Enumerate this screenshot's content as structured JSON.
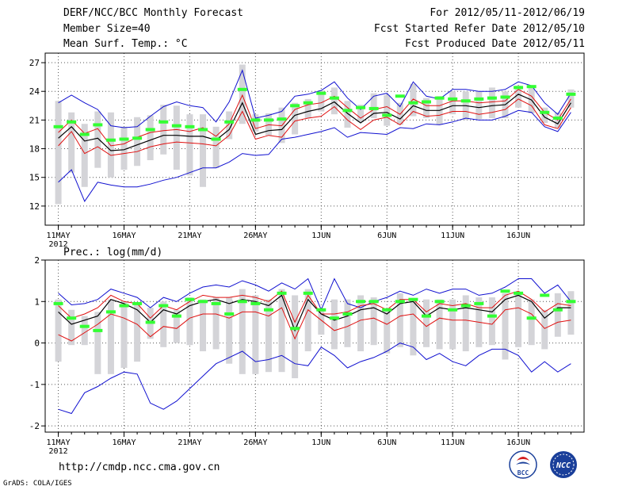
{
  "header": {
    "title": "DERF/NCC/BCC Monthly Forecast",
    "member_size": "Member Size=40",
    "variable": "Mean Surf. Temp.: °C",
    "period": "For 2012/05/11-2012/06/19",
    "fcst_started": "Fcst Started Refer Date 2012/05/10",
    "fcst_produced": "Fcst Produced Date 2012/05/11"
  },
  "footer": {
    "url": "http://cmdp.ncc.cma.gov.cn",
    "credit": "GrADS: COLA/IGES",
    "logo_left": "BCC",
    "logo_right": "NCC"
  },
  "colors": {
    "max": "#1010d0",
    "min": "#1010d0",
    "ensemble": "#000000",
    "spread": "#e01010",
    "box": "#d4d4d8",
    "marker": "#33ff33",
    "grid": "#555555"
  },
  "chart_data": [
    {
      "type": "line",
      "title": "Mean Surf. Temp.: °C",
      "xlabel": "",
      "ylabel": "",
      "ylim": [
        10,
        28
      ],
      "yticks": [
        12,
        15,
        18,
        21,
        24,
        27
      ],
      "x_tick_labels": [
        "11MAY",
        "16MAY",
        "21MAY",
        "26MAY",
        "1JUN",
        "6JUN",
        "11JUN",
        "16JUN"
      ],
      "x_tick_days": [
        0,
        5,
        10,
        15,
        20,
        25,
        30,
        35
      ],
      "year_label": "2012",
      "days": 40,
      "series": [
        {
          "name": "max",
          "values": [
            22.8,
            23.6,
            22.8,
            22.1,
            20.4,
            20.2,
            20.3,
            21.4,
            22.4,
            22.9,
            22.5,
            22.3,
            20.8,
            22.9,
            26.2,
            21.2,
            21.5,
            21.9,
            23.5,
            23.7,
            24.1,
            25.0,
            23.3,
            22.1,
            23.5,
            23.8,
            22.4,
            25.0,
            23.5,
            23.2,
            24.2,
            24.2,
            24.0,
            24.0,
            24.2,
            25.0,
            24.6,
            22.8,
            21.6,
            23.8
          ]
        },
        {
          "name": "upper",
          "values": [
            19.7,
            21.0,
            19.6,
            20.1,
            18.3,
            18.5,
            19.2,
            19.7,
            19.9,
            20.0,
            19.8,
            20.2,
            19.3,
            20.6,
            23.6,
            20.1,
            20.5,
            20.4,
            22.1,
            22.6,
            22.8,
            23.5,
            22.3,
            21.2,
            22.1,
            22.4,
            21.6,
            23.2,
            22.5,
            22.5,
            23.0,
            23.0,
            22.8,
            22.9,
            23.0,
            24.2,
            23.5,
            21.8,
            21.0,
            23.2
          ]
        },
        {
          "name": "ensemble",
          "values": [
            19.1,
            20.3,
            18.8,
            19.1,
            17.8,
            17.9,
            18.4,
            18.9,
            19.4,
            19.4,
            19.3,
            19.3,
            18.9,
            20.0,
            22.8,
            19.5,
            19.9,
            20.0,
            21.5,
            21.9,
            22.2,
            22.9,
            21.7,
            20.7,
            21.7,
            21.8,
            21.1,
            22.5,
            22.0,
            22.0,
            22.5,
            22.5,
            22.3,
            22.5,
            22.6,
            23.7,
            23.1,
            21.3,
            20.6,
            22.8
          ]
        },
        {
          "name": "lower",
          "values": [
            18.3,
            19.8,
            17.5,
            18.2,
            17.3,
            17.5,
            17.7,
            18.2,
            18.5,
            18.7,
            18.6,
            18.5,
            18.3,
            19.4,
            21.9,
            19.0,
            19.4,
            19.2,
            20.9,
            21.2,
            21.4,
            22.4,
            21.0,
            20.0,
            21.0,
            21.3,
            20.5,
            21.9,
            21.4,
            21.5,
            21.9,
            21.9,
            21.6,
            21.8,
            22.1,
            23.2,
            22.5,
            20.5,
            20.1,
            22.3
          ]
        },
        {
          "name": "min",
          "values": [
            14.5,
            15.8,
            12.5,
            14.5,
            14.2,
            14.0,
            14.0,
            14.3,
            14.7,
            15.0,
            15.5,
            16.0,
            16.0,
            16.6,
            17.5,
            17.3,
            17.4,
            19.0,
            19.2,
            19.5,
            19.8,
            20.2,
            19.2,
            19.7,
            19.6,
            19.5,
            20.2,
            20.1,
            20.6,
            20.5,
            20.8,
            21.2,
            21.0,
            21.0,
            21.4,
            22.0,
            21.8,
            20.3,
            19.8,
            21.8
          ]
        },
        {
          "name": "marker",
          "values": [
            20.3,
            20.8,
            19.5,
            20.5,
            18.9,
            19.0,
            19.1,
            20.0,
            20.8,
            20.4,
            20.3,
            20.0,
            19.0,
            20.8,
            24.2,
            21.0,
            21.0,
            21.1,
            22.5,
            22.8,
            23.8,
            23.3,
            22.0,
            22.3,
            22.2,
            21.5,
            23.5,
            22.8,
            22.9,
            23.3,
            23.2,
            23.0,
            23.2,
            23.3,
            23.4,
            24.4,
            24.5,
            21.8,
            21.2,
            23.7
          ]
        },
        {
          "name": "box_top",
          "values": [
            23.0,
            21.8,
            20.6,
            21.9,
            21.8,
            20.3,
            21.3,
            21.5,
            22.6,
            22.5,
            21.6,
            21.6,
            20.3,
            21.9,
            26.8,
            21.6,
            21.7,
            22.3,
            22.8,
            23.2,
            24.1,
            24.4,
            23.0,
            22.6,
            23.8,
            23.6,
            22.8,
            24.8,
            23.3,
            23.5,
            24.0,
            24.0,
            24.0,
            24.4,
            24.0,
            24.6,
            24.6,
            22.3,
            21.8,
            24.2
          ]
        },
        {
          "name": "box_bottom",
          "values": [
            12.2,
            15.5,
            14.0,
            16.0,
            15.0,
            15.8,
            16.2,
            16.8,
            17.4,
            15.8,
            15.2,
            14.0,
            16.0,
            19.0,
            20.6,
            19.8,
            19.4,
            18.6,
            19.5,
            21.2,
            21.9,
            21.6,
            20.2,
            20.8,
            21.2,
            20.4,
            20.5,
            21.4,
            21.2,
            20.5,
            21.6,
            21.0,
            21.1,
            21.2,
            21.2,
            22.3,
            21.7,
            20.7,
            20.2,
            22.3
          ]
        }
      ]
    },
    {
      "type": "line",
      "title": "Prec.: log(mm/d)",
      "xlabel": "",
      "ylabel": "",
      "ylim": [
        -2.15,
        2.0
      ],
      "yticks": [
        -2,
        -1,
        0,
        1,
        2
      ],
      "x_tick_labels": [
        "11MAY",
        "16MAY",
        "21MAY",
        "26MAY",
        "1JUN",
        "6JUN",
        "11JUN",
        "16JUN"
      ],
      "x_tick_days": [
        0,
        5,
        10,
        15,
        20,
        25,
        30,
        35
      ],
      "year_label": "2012",
      "days": 40,
      "series": [
        {
          "name": "max",
          "values": [
            1.2,
            0.92,
            0.95,
            1.05,
            1.3,
            1.2,
            1.1,
            0.85,
            1.1,
            1.0,
            1.2,
            1.35,
            1.4,
            1.35,
            1.5,
            1.4,
            1.25,
            1.45,
            1.3,
            1.55,
            0.8,
            1.55,
            0.95,
            0.85,
            1.0,
            1.1,
            1.25,
            1.15,
            1.3,
            1.2,
            1.3,
            1.3,
            1.15,
            1.2,
            1.35,
            1.55,
            1.55,
            1.2,
            1.4,
            1.0
          ]
        },
        {
          "name": "upper",
          "values": [
            0.9,
            0.6,
            0.7,
            0.85,
            1.15,
            1.0,
            0.95,
            0.6,
            0.9,
            0.8,
            1.0,
            1.15,
            1.1,
            1.1,
            1.15,
            1.1,
            1.0,
            1.25,
            0.5,
            1.15,
            0.7,
            0.7,
            0.75,
            0.9,
            0.95,
            0.8,
            1.05,
            1.05,
            0.75,
            0.95,
            0.9,
            0.95,
            0.85,
            0.85,
            1.15,
            1.25,
            1.05,
            0.75,
            0.95,
            0.9
          ]
        },
        {
          "name": "ensemble",
          "values": [
            0.75,
            0.45,
            0.55,
            0.65,
            1.05,
            0.95,
            0.8,
            0.5,
            0.8,
            0.7,
            0.9,
            1.0,
            1.05,
            0.95,
            1.05,
            1.0,
            0.9,
            1.15,
            0.3,
            1.05,
            0.7,
            0.55,
            0.65,
            0.8,
            0.85,
            0.7,
            0.95,
            1.0,
            0.65,
            0.85,
            0.8,
            0.85,
            0.8,
            0.75,
            1.05,
            1.15,
            1.0,
            0.6,
            0.85,
            0.85
          ]
        },
        {
          "name": "lower",
          "values": [
            0.2,
            0.05,
            0.25,
            0.45,
            0.7,
            0.6,
            0.45,
            0.15,
            0.4,
            0.35,
            0.6,
            0.7,
            0.7,
            0.6,
            0.75,
            0.75,
            0.65,
            0.85,
            0.1,
            0.8,
            0.55,
            0.3,
            0.4,
            0.55,
            0.6,
            0.45,
            0.65,
            0.7,
            0.4,
            0.6,
            0.55,
            0.55,
            0.5,
            0.45,
            0.8,
            0.85,
            0.7,
            0.35,
            0.5,
            0.55
          ]
        },
        {
          "name": "min",
          "values": [
            -1.6,
            -1.7,
            -1.2,
            -1.05,
            -0.85,
            -0.7,
            -0.75,
            -1.45,
            -1.6,
            -1.4,
            -1.1,
            -0.8,
            -0.5,
            -0.35,
            -0.2,
            -0.45,
            -0.4,
            -0.3,
            -0.5,
            -0.55,
            -0.1,
            -0.3,
            -0.6,
            -0.45,
            -0.35,
            -0.2,
            0.0,
            -0.1,
            -0.4,
            -0.25,
            -0.45,
            -0.55,
            -0.3,
            -0.15,
            -0.15,
            -0.3,
            -0.7,
            -0.45,
            -0.7,
            -0.5
          ]
        },
        {
          "name": "marker",
          "values": [
            0.95,
            0.6,
            0.4,
            0.3,
            0.75,
            0.9,
            0.95,
            0.5,
            0.9,
            0.65,
            1.05,
            1.0,
            0.95,
            0.7,
            1.0,
            0.95,
            0.8,
            1.2,
            0.35,
            1.2,
            0.8,
            0.6,
            0.7,
            1.0,
            1.0,
            0.8,
            1.0,
            1.05,
            0.65,
            1.0,
            0.8,
            0.9,
            0.95,
            0.65,
            1.25,
            1.2,
            0.6,
            1.15,
            0.8,
            1.0
          ]
        },
        {
          "name": "box_top",
          "values": [
            1.05,
            0.8,
            0.65,
            0.75,
            1.05,
            1.0,
            0.95,
            0.85,
            1.0,
            0.8,
            1.1,
            1.05,
            1.1,
            1.1,
            1.3,
            1.15,
            1.05,
            1.3,
            1.15,
            1.3,
            0.8,
            1.05,
            1.05,
            1.15,
            1.1,
            0.8,
            1.2,
            1.05,
            1.05,
            1.05,
            1.05,
            1.15,
            1.1,
            1.1,
            1.2,
            1.2,
            1.05,
            0.8,
            1.2,
            1.25
          ]
        },
        {
          "name": "box_bottom",
          "values": [
            -0.45,
            -0.05,
            -0.05,
            -0.75,
            -0.75,
            -0.6,
            -0.45,
            0.1,
            -0.1,
            0.0,
            -0.05,
            -0.2,
            -0.15,
            -0.5,
            -0.75,
            -0.75,
            -0.7,
            -0.7,
            -0.85,
            -0.2,
            0.2,
            -0.15,
            -0.1,
            -0.2,
            -0.05,
            -0.25,
            -0.1,
            -0.3,
            -0.1,
            -0.15,
            -0.15,
            -0.2,
            -0.1,
            -0.05,
            -0.4,
            -0.1,
            -0.05,
            -0.15,
            0.15,
            0.2
          ]
        }
      ]
    }
  ]
}
